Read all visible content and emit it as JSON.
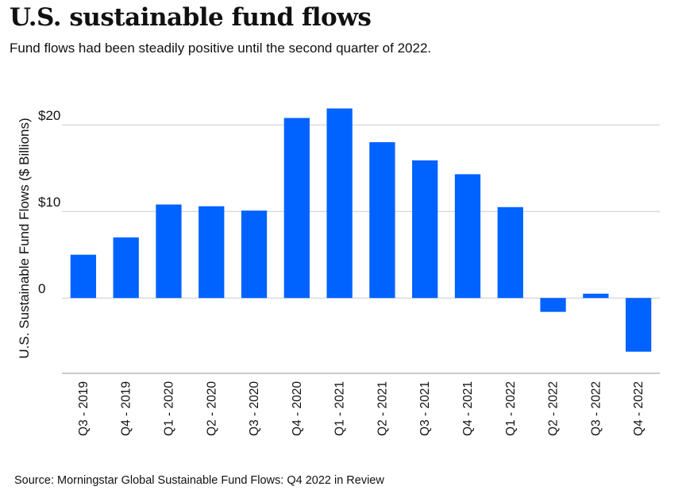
{
  "title": "U.S. sustainable fund flows",
  "subtitle": "Fund flows had been steadily positive until the second quarter of 2022.",
  "source": "Source: Morningstar Global Sustainable Fund Flows: Q4 2022 in Review",
  "chart_data": {
    "type": "bar",
    "title": "U.S. sustainable fund flows",
    "ylabel": "U.S. Sustainable Fund Flows ($ Billions)",
    "xlabel": "",
    "categories": [
      "Q3 - 2019",
      "Q4 - 2019",
      "Q1 - 2020",
      "Q2 - 2020",
      "Q3 - 2020",
      "Q4 - 2020",
      "Q1 - 2021",
      "Q2 - 2021",
      "Q3 - 2021",
      "Q4 - 2021",
      "Q1 - 2022",
      "Q2 - 2022",
      "Q3 - 2022",
      "Q4 - 2022"
    ],
    "values": [
      5.0,
      7.0,
      10.8,
      10.6,
      10.1,
      20.8,
      21.9,
      18.0,
      15.9,
      14.3,
      10.5,
      -1.6,
      0.5,
      -6.2
    ],
    "ylim": [
      -8.7,
      22.5
    ],
    "yticks": [
      0,
      10,
      20
    ],
    "ytick_labels": [
      "0",
      "$10",
      "$20"
    ],
    "grid": true,
    "bar_color": "#0062ff",
    "grid_color": "#cccccc",
    "axis_color": "#aaaaaa"
  }
}
